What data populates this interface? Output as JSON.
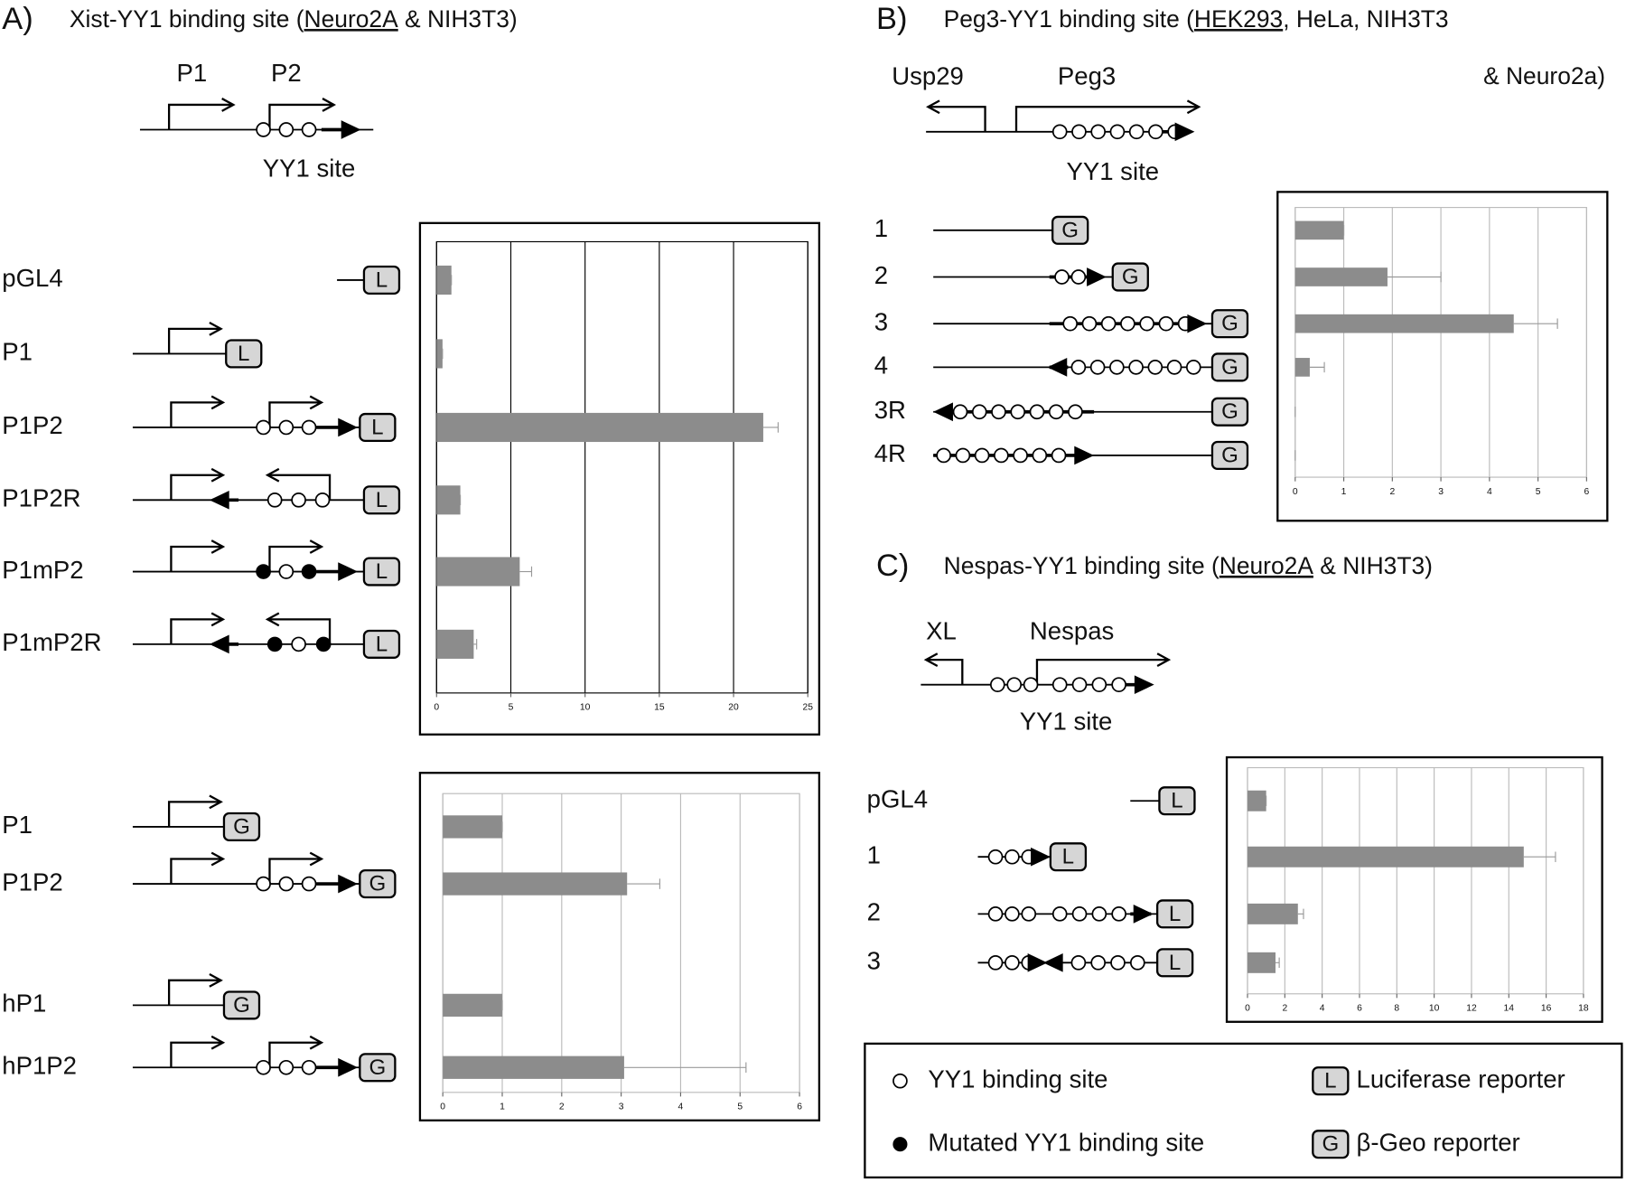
{
  "panels": {
    "A": {
      "label": "A)",
      "title_parts": [
        "Xist-YY1 binding site (",
        "Neuro2A",
        "  & NIH3T3)"
      ],
      "promoters": [
        "P1",
        "P2"
      ],
      "site": "YY1 site"
    },
    "B": {
      "label": "B)",
      "title_parts": [
        "Peg3-YY1 binding site (",
        "HEK293",
        ", HeLa, NIH3T3"
      ],
      "title_line2": "& Neuro2a)",
      "genes": [
        "Usp29",
        "Peg3"
      ],
      "site": "YY1 site"
    },
    "C": {
      "label": "C)",
      "title_parts": [
        "Nespas-YY1 binding site (",
        "Neuro2A",
        " & NIH3T3)"
      ],
      "genes": [
        "XL",
        "Nespas"
      ],
      "site": "YY1 site"
    }
  },
  "legend": {
    "open_site": "YY1 binding site",
    "mutated_site": "Mutated YY1 binding site",
    "luciferase": {
      "symbol": "L",
      "label": "Luciferase reporter"
    },
    "bgeo": {
      "symbol": "G",
      "label": "β-Geo reporter"
    }
  },
  "chart_data": [
    {
      "type": "bar",
      "orientation": "horizontal",
      "categories": [
        "pGL4",
        "P1",
        "P1P2",
        "P1P2R",
        "P1mP2",
        "P1mP2R"
      ],
      "values": [
        1,
        0.4,
        22,
        1.6,
        5.6,
        2.5
      ],
      "errors": [
        0,
        0,
        1,
        0,
        0.8,
        0.2
      ],
      "color": "#8c8c8c",
      "xlim": [
        0,
        25
      ],
      "xticks": [
        0,
        5,
        10,
        15,
        20,
        25
      ],
      "grid": true
    },
    {
      "type": "bar",
      "orientation": "horizontal",
      "categories": [
        "P1",
        "P1P2",
        "hP1",
        "hP1P2"
      ],
      "values": [
        1,
        3.1,
        1,
        3.05
      ],
      "errors": [
        0,
        0.55,
        0,
        2.05
      ],
      "color": "#8c8c8c",
      "xlim": [
        0,
        6
      ],
      "xticks": [
        0,
        1,
        2,
        3,
        4,
        5,
        6
      ],
      "grid": true
    },
    {
      "type": "bar",
      "orientation": "horizontal",
      "categories": [
        "1",
        "2",
        "3",
        "4",
        "3R",
        "4R"
      ],
      "values": [
        1,
        1.9,
        4.5,
        0.3,
        0,
        0
      ],
      "errors": [
        0,
        1.1,
        0.9,
        0.3,
        0,
        0
      ],
      "color": "#8c8c8c",
      "xlim": [
        0,
        6
      ],
      "xticks": [
        0,
        1,
        2,
        3,
        4,
        5,
        6
      ],
      "grid": true
    },
    {
      "type": "bar",
      "orientation": "horizontal",
      "categories": [
        "pGL4",
        "1",
        "2",
        "3"
      ],
      "values": [
        1,
        14.8,
        2.7,
        1.5
      ],
      "errors": [
        0,
        1.7,
        0.3,
        0.2
      ],
      "color": "#8c8c8c",
      "xlim": [
        0,
        18
      ],
      "xticks": [
        0,
        2,
        4,
        6,
        8,
        10,
        12,
        14,
        16,
        18
      ],
      "grid": true
    }
  ]
}
